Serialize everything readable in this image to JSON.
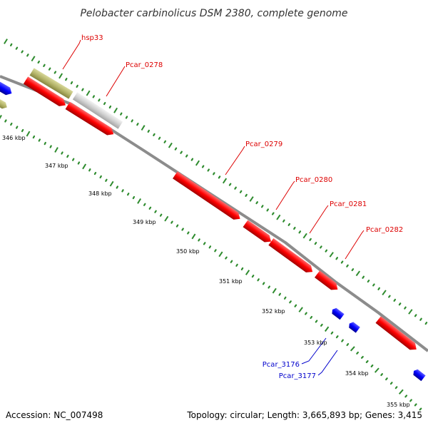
{
  "title": "Pelobacter carbinolicus DSM 2380, complete genome",
  "footer": {
    "accession": "Accession: NC_007498",
    "summary": "Topology: circular; Length: 3,665,893 bp; Genes: 3,415"
  },
  "colors": {
    "backbone": "#8c8c8c",
    "dots": "#2e8b2e",
    "red_gene": "#ff0000",
    "blue_gene": "#0000ff",
    "olive_gene": "#b5b56a",
    "grey_gene": "#cccccc",
    "label_red": "#dd0000",
    "label_blue": "#0000cc"
  },
  "tick_labels": [
    "346 kbp",
    "347 kbp",
    "348 kbp",
    "349 kbp",
    "350 kbp",
    "351 kbp",
    "352 kbp",
    "353 kbp",
    "354 kbp",
    "355 kbp"
  ],
  "gene_labels": [
    {
      "text": "hsp33",
      "color": "label_red"
    },
    {
      "text": "Pcar_0278",
      "color": "label_red"
    },
    {
      "text": "Pcar_0279",
      "color": "label_red"
    },
    {
      "text": "Pcar_0280",
      "color": "label_red"
    },
    {
      "text": "Pcar_0281",
      "color": "label_red"
    },
    {
      "text": "Pcar_0282",
      "color": "label_red"
    },
    {
      "text": "Pcar_3176",
      "color": "label_blue"
    },
    {
      "text": "Pcar_3177",
      "color": "label_blue"
    }
  ]
}
